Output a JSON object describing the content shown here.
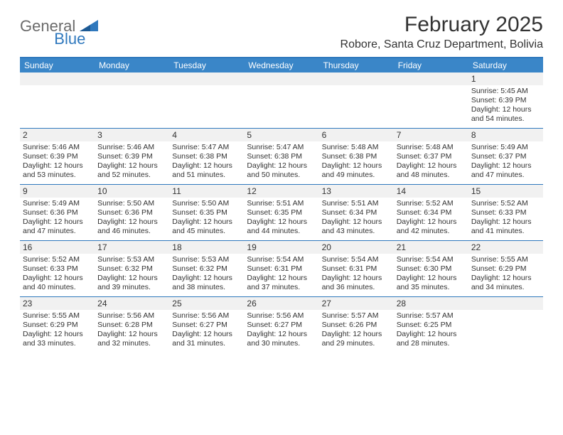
{
  "logo": {
    "word1": "General",
    "word2": "Blue",
    "tri_color": "#2f78bd"
  },
  "title": "February 2025",
  "location": "Robore, Santa Cruz Department, Bolivia",
  "colors": {
    "header_bar": "#3a86c8",
    "header_top_border": "#2f78bd",
    "week_divider": "#2f78bd",
    "daynum_bg": "#f1f1f1",
    "text": "#333333",
    "logo_gray": "#6b6b6b"
  },
  "dow": [
    "Sunday",
    "Monday",
    "Tuesday",
    "Wednesday",
    "Thursday",
    "Friday",
    "Saturday"
  ],
  "weeks": [
    [
      {
        "n": "",
        "sr": "",
        "ss": "",
        "dl": ""
      },
      {
        "n": "",
        "sr": "",
        "ss": "",
        "dl": ""
      },
      {
        "n": "",
        "sr": "",
        "ss": "",
        "dl": ""
      },
      {
        "n": "",
        "sr": "",
        "ss": "",
        "dl": ""
      },
      {
        "n": "",
        "sr": "",
        "ss": "",
        "dl": ""
      },
      {
        "n": "",
        "sr": "",
        "ss": "",
        "dl": ""
      },
      {
        "n": "1",
        "sr": "Sunrise: 5:45 AM",
        "ss": "Sunset: 6:39 PM",
        "dl": "Daylight: 12 hours and 54 minutes."
      }
    ],
    [
      {
        "n": "2",
        "sr": "Sunrise: 5:46 AM",
        "ss": "Sunset: 6:39 PM",
        "dl": "Daylight: 12 hours and 53 minutes."
      },
      {
        "n": "3",
        "sr": "Sunrise: 5:46 AM",
        "ss": "Sunset: 6:39 PM",
        "dl": "Daylight: 12 hours and 52 minutes."
      },
      {
        "n": "4",
        "sr": "Sunrise: 5:47 AM",
        "ss": "Sunset: 6:38 PM",
        "dl": "Daylight: 12 hours and 51 minutes."
      },
      {
        "n": "5",
        "sr": "Sunrise: 5:47 AM",
        "ss": "Sunset: 6:38 PM",
        "dl": "Daylight: 12 hours and 50 minutes."
      },
      {
        "n": "6",
        "sr": "Sunrise: 5:48 AM",
        "ss": "Sunset: 6:38 PM",
        "dl": "Daylight: 12 hours and 49 minutes."
      },
      {
        "n": "7",
        "sr": "Sunrise: 5:48 AM",
        "ss": "Sunset: 6:37 PM",
        "dl": "Daylight: 12 hours and 48 minutes."
      },
      {
        "n": "8",
        "sr": "Sunrise: 5:49 AM",
        "ss": "Sunset: 6:37 PM",
        "dl": "Daylight: 12 hours and 47 minutes."
      }
    ],
    [
      {
        "n": "9",
        "sr": "Sunrise: 5:49 AM",
        "ss": "Sunset: 6:36 PM",
        "dl": "Daylight: 12 hours and 47 minutes."
      },
      {
        "n": "10",
        "sr": "Sunrise: 5:50 AM",
        "ss": "Sunset: 6:36 PM",
        "dl": "Daylight: 12 hours and 46 minutes."
      },
      {
        "n": "11",
        "sr": "Sunrise: 5:50 AM",
        "ss": "Sunset: 6:35 PM",
        "dl": "Daylight: 12 hours and 45 minutes."
      },
      {
        "n": "12",
        "sr": "Sunrise: 5:51 AM",
        "ss": "Sunset: 6:35 PM",
        "dl": "Daylight: 12 hours and 44 minutes."
      },
      {
        "n": "13",
        "sr": "Sunrise: 5:51 AM",
        "ss": "Sunset: 6:34 PM",
        "dl": "Daylight: 12 hours and 43 minutes."
      },
      {
        "n": "14",
        "sr": "Sunrise: 5:52 AM",
        "ss": "Sunset: 6:34 PM",
        "dl": "Daylight: 12 hours and 42 minutes."
      },
      {
        "n": "15",
        "sr": "Sunrise: 5:52 AM",
        "ss": "Sunset: 6:33 PM",
        "dl": "Daylight: 12 hours and 41 minutes."
      }
    ],
    [
      {
        "n": "16",
        "sr": "Sunrise: 5:52 AM",
        "ss": "Sunset: 6:33 PM",
        "dl": "Daylight: 12 hours and 40 minutes."
      },
      {
        "n": "17",
        "sr": "Sunrise: 5:53 AM",
        "ss": "Sunset: 6:32 PM",
        "dl": "Daylight: 12 hours and 39 minutes."
      },
      {
        "n": "18",
        "sr": "Sunrise: 5:53 AM",
        "ss": "Sunset: 6:32 PM",
        "dl": "Daylight: 12 hours and 38 minutes."
      },
      {
        "n": "19",
        "sr": "Sunrise: 5:54 AM",
        "ss": "Sunset: 6:31 PM",
        "dl": "Daylight: 12 hours and 37 minutes."
      },
      {
        "n": "20",
        "sr": "Sunrise: 5:54 AM",
        "ss": "Sunset: 6:31 PM",
        "dl": "Daylight: 12 hours and 36 minutes."
      },
      {
        "n": "21",
        "sr": "Sunrise: 5:54 AM",
        "ss": "Sunset: 6:30 PM",
        "dl": "Daylight: 12 hours and 35 minutes."
      },
      {
        "n": "22",
        "sr": "Sunrise: 5:55 AM",
        "ss": "Sunset: 6:29 PM",
        "dl": "Daylight: 12 hours and 34 minutes."
      }
    ],
    [
      {
        "n": "23",
        "sr": "Sunrise: 5:55 AM",
        "ss": "Sunset: 6:29 PM",
        "dl": "Daylight: 12 hours and 33 minutes."
      },
      {
        "n": "24",
        "sr": "Sunrise: 5:56 AM",
        "ss": "Sunset: 6:28 PM",
        "dl": "Daylight: 12 hours and 32 minutes."
      },
      {
        "n": "25",
        "sr": "Sunrise: 5:56 AM",
        "ss": "Sunset: 6:27 PM",
        "dl": "Daylight: 12 hours and 31 minutes."
      },
      {
        "n": "26",
        "sr": "Sunrise: 5:56 AM",
        "ss": "Sunset: 6:27 PM",
        "dl": "Daylight: 12 hours and 30 minutes."
      },
      {
        "n": "27",
        "sr": "Sunrise: 5:57 AM",
        "ss": "Sunset: 6:26 PM",
        "dl": "Daylight: 12 hours and 29 minutes."
      },
      {
        "n": "28",
        "sr": "Sunrise: 5:57 AM",
        "ss": "Sunset: 6:25 PM",
        "dl": "Daylight: 12 hours and 28 minutes."
      },
      {
        "n": "",
        "sr": "",
        "ss": "",
        "dl": ""
      }
    ]
  ]
}
